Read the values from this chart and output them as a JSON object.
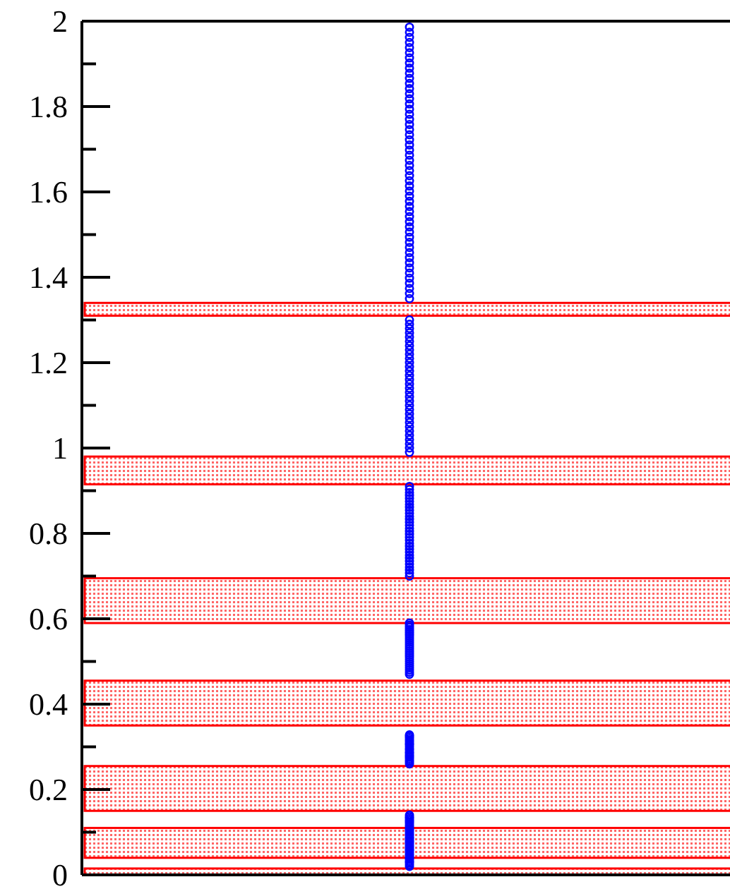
{
  "chart_data": {
    "type": "scatter",
    "categories": [
      null
    ],
    "ylim": [
      0,
      2
    ],
    "marker": "circle",
    "grid": false,
    "yticks": [
      0,
      {
        "value": 0.1,
        "label": null
      },
      0.2,
      {
        "value": 0.3,
        "label": null
      },
      0.4,
      {
        "value": 0.5,
        "label": null
      },
      0.6,
      {
        "value": 0.7,
        "label": null
      },
      0.8,
      {
        "value": 0.9,
        "label": null
      },
      1,
      {
        "value": 1.1,
        "label": null
      },
      1.2,
      {
        "value": 1.3,
        "label": null
      },
      1.4,
      {
        "value": 1.5,
        "label": null
      },
      1.6,
      {
        "value": 1.7,
        "label": null
      },
      1.8,
      {
        "value": 1.9,
        "label": null
      },
      2
    ],
    "bands": [
      {
        "axis": "y",
        "from": 0,
        "to": 0.015,
        "color": "#ff0000"
      },
      {
        "axis": "y",
        "from": 0.04,
        "to": 0.11,
        "color": "#ff0000"
      },
      {
        "axis": "y",
        "from": 0.15,
        "to": 0.255,
        "color": "#ff0000"
      },
      {
        "axis": "y",
        "from": 0.35,
        "to": 0.455,
        "color": "#ff0000"
      },
      {
        "axis": "y",
        "from": 0.59,
        "to": 0.695,
        "color": "#ff0000"
      },
      {
        "axis": "y",
        "from": 0.915,
        "to": 0.98,
        "color": "#ff0000"
      },
      {
        "axis": "y",
        "from": 1.31,
        "to": 1.34,
        "color": "#ff0000"
      }
    ],
    "series": [
      {
        "color": "#0000ff",
        "x": [
          null,
          null,
          null,
          null,
          null,
          null,
          null,
          null,
          null,
          null,
          null,
          null,
          null,
          null,
          null,
          null,
          null,
          null,
          null,
          null,
          null,
          null,
          null,
          null,
          null,
          null,
          null,
          null,
          null,
          null,
          null,
          null,
          null,
          null,
          null,
          null,
          null,
          null,
          null,
          null,
          null,
          null,
          null,
          null,
          null,
          null,
          null,
          null,
          null,
          null,
          null,
          null,
          null,
          null,
          null,
          null,
          null,
          null,
          null,
          null,
          null,
          null,
          null,
          null,
          null,
          null,
          null,
          null,
          null,
          null,
          null,
          null,
          null,
          null,
          null,
          null,
          null,
          null,
          null,
          null,
          null,
          null,
          null,
          null,
          null,
          null,
          null,
          null,
          null,
          null,
          null,
          null,
          null,
          null,
          null,
          null,
          null,
          null,
          null,
          null,
          null,
          null,
          null,
          null,
          null,
          null,
          null,
          null,
          null,
          null,
          null,
          null,
          null,
          null,
          null,
          null,
          null,
          null,
          null,
          null,
          null,
          null,
          null,
          null,
          null,
          null,
          null,
          null,
          null,
          null,
          null,
          null,
          null,
          null,
          null,
          null,
          null,
          null,
          null,
          null,
          null,
          null,
          null,
          null,
          null,
          null,
          null,
          null,
          null,
          null,
          null,
          null,
          null,
          null,
          null,
          null,
          null,
          null,
          null,
          null,
          null,
          null,
          null,
          null,
          null,
          null,
          null,
          null,
          null,
          null,
          null,
          null,
          null,
          null,
          null,
          null,
          null,
          null,
          null,
          null,
          null,
          null,
          null,
          null,
          null,
          null,
          null,
          null,
          null,
          null,
          null
        ],
        "values": [
          0.02,
          0.024,
          0.028,
          0.032,
          0.036,
          0.04,
          0.044,
          0.048,
          0.052,
          0.056,
          0.06,
          0.064,
          0.068,
          0.072,
          0.076,
          0.08,
          0.084,
          0.088,
          0.092,
          0.096,
          0.1,
          0.104,
          0.108,
          0.112,
          0.116,
          0.12,
          0.124,
          0.128,
          0.132,
          0.136,
          0.14,
          0.26,
          0.264,
          0.268,
          0.272,
          0.276,
          0.28,
          0.284,
          0.288,
          0.292,
          0.296,
          0.3,
          0.304,
          0.308,
          0.312,
          0.316,
          0.32,
          0.324,
          0.328,
          0.47,
          0.475,
          0.48,
          0.485,
          0.49,
          0.495,
          0.5,
          0.505,
          0.51,
          0.515,
          0.52,
          0.525,
          0.53,
          0.535,
          0.54,
          0.545,
          0.55,
          0.555,
          0.56,
          0.565,
          0.57,
          0.575,
          0.58,
          0.585,
          0.59,
          0.7,
          0.707,
          0.714,
          0.721,
          0.728,
          0.735,
          0.742,
          0.749,
          0.756,
          0.763,
          0.77,
          0.777,
          0.784,
          0.791,
          0.798,
          0.805,
          0.812,
          0.819,
          0.826,
          0.833,
          0.84,
          0.847,
          0.854,
          0.861,
          0.868,
          0.875,
          0.882,
          0.889,
          0.896,
          0.903,
          0.91,
          0.99,
          1,
          1.01,
          1.02,
          1.03,
          1.04,
          1.05,
          1.06,
          1.07,
          1.08,
          1.09,
          1.1,
          1.11,
          1.12,
          1.13,
          1.14,
          1.15,
          1.16,
          1.17,
          1.18,
          1.19,
          1.2,
          1.21,
          1.22,
          1.23,
          1.24,
          1.25,
          1.26,
          1.27,
          1.28,
          1.29,
          1.3,
          1.35,
          1.362,
          1.374,
          1.386,
          1.398,
          1.41,
          1.422,
          1.434,
          1.446,
          1.458,
          1.47,
          1.482,
          1.494,
          1.506,
          1.518,
          1.53,
          1.542,
          1.554,
          1.566,
          1.578,
          1.59,
          1.602,
          1.614,
          1.626,
          1.638,
          1.65,
          1.662,
          1.674,
          1.686,
          1.698,
          1.71,
          1.722,
          1.734,
          1.746,
          1.758,
          1.77,
          1.782,
          1.794,
          1.806,
          1.818,
          1.83,
          1.842,
          1.854,
          1.866,
          1.878,
          1.89,
          1.902,
          1.914,
          1.926,
          1.938,
          1.95,
          1.962,
          1.974,
          1.986
        ]
      }
    ]
  }
}
